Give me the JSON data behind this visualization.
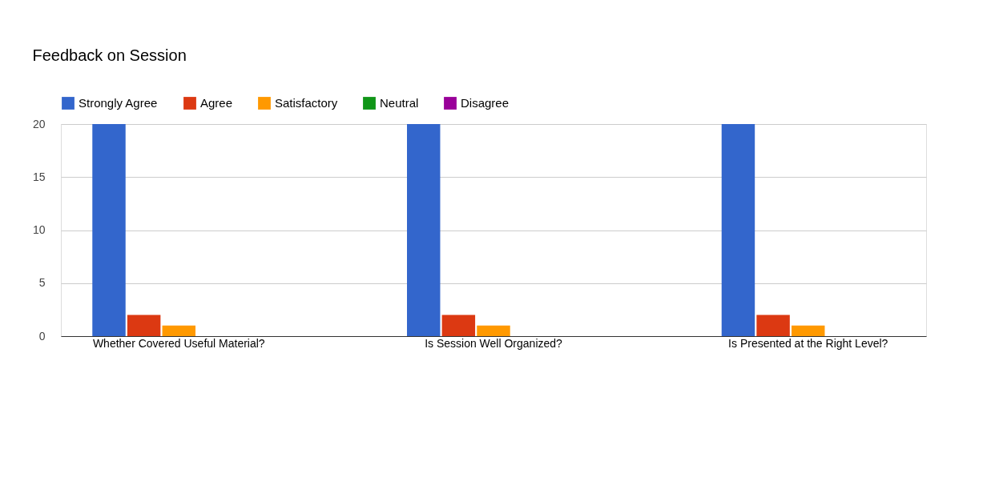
{
  "chart_data": {
    "type": "bar",
    "title": "Feedback on Session",
    "categories": [
      "Whether Covered Useful Material?",
      "Is Session Well Organized?",
      "Is Presented at the Right Level?"
    ],
    "series": [
      {
        "name": "Strongly Agree",
        "color": "#3366cc",
        "values": [
          20,
          20,
          20
        ]
      },
      {
        "name": "Agree",
        "color": "#dc3912",
        "values": [
          2,
          2,
          2
        ]
      },
      {
        "name": "Satisfactory",
        "color": "#ff9900",
        "values": [
          1,
          1,
          1
        ]
      },
      {
        "name": "Neutral",
        "color": "#109618",
        "values": [
          0,
          0,
          0
        ]
      },
      {
        "name": "Disagree",
        "color": "#990099",
        "values": [
          0,
          0,
          0
        ]
      }
    ],
    "ylim": [
      0,
      20
    ],
    "yticks": [
      0,
      5,
      10,
      15,
      20
    ],
    "grid": "y",
    "legend": "top"
  }
}
